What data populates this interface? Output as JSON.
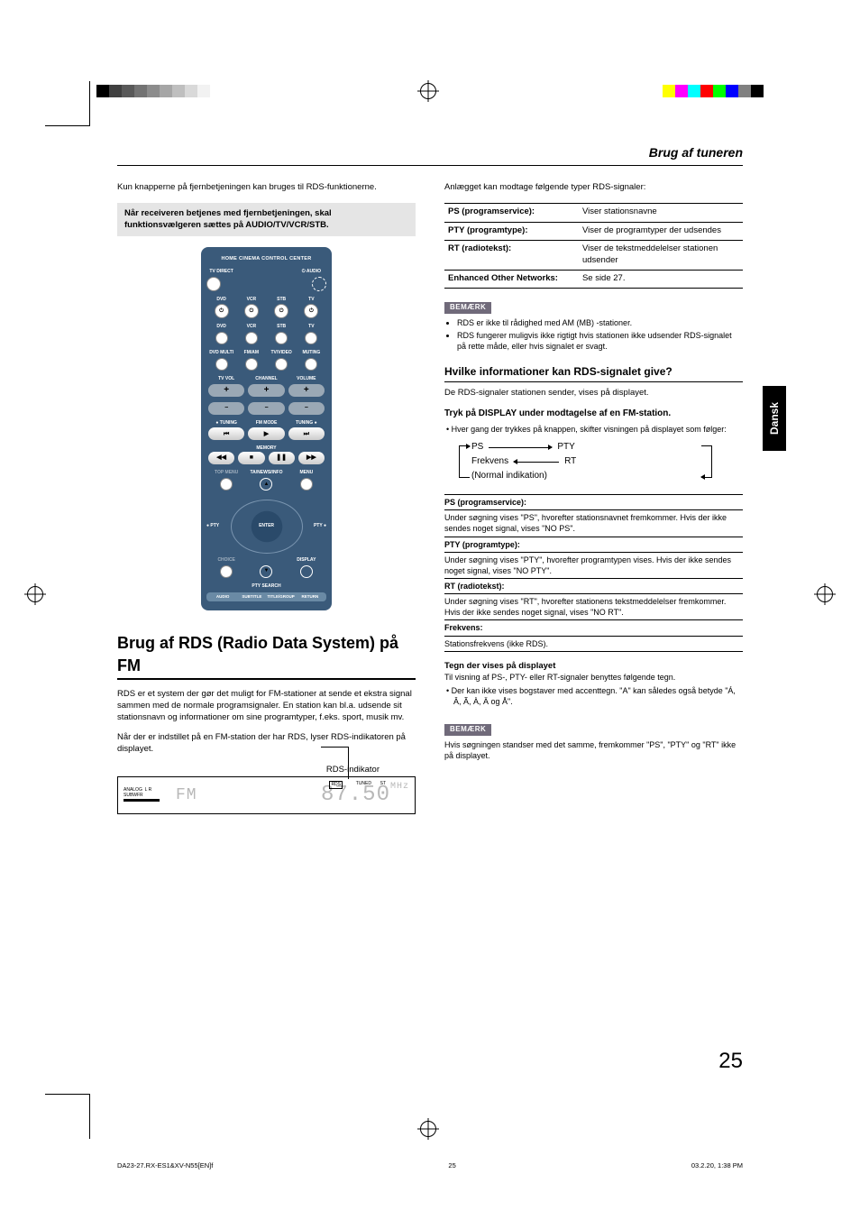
{
  "colorbars": {
    "left": [
      "#000000",
      "#404040",
      "#595959",
      "#737373",
      "#8c8c8c",
      "#a6a6a6",
      "#bfbfbf",
      "#d9d9d9",
      "#f2f2f2",
      "#ffffff"
    ],
    "right": [
      "#ffff00",
      "#ff00ff",
      "#00ffff",
      "#ff0000",
      "#00ff00",
      "#0000ff",
      "#808080",
      "#000000"
    ]
  },
  "header": "Brug af tuneren",
  "sidetab": "Dansk",
  "pagenum": "25",
  "footer": {
    "file": "DA23-27.RX-ES1&XV-N55[EN]f",
    "pg": "25",
    "stamp": "03.2.20, 1:38 PM"
  },
  "left": {
    "intro": "Kun knapperne på fjernbetjeningen kan bruges til RDS-funktionerne.",
    "graybox": "Når receiveren betjenes med fjernbetjeningen, skal funktionsvælgeren sættes på AUDIO/TV/VCR/STB.",
    "remote": {
      "title": "HOME CINEMA CONTROL CENTER",
      "r1": [
        "TV DIRECT",
        "",
        "",
        "",
        "⏻ AUDIO"
      ],
      "r2": [
        "DVD",
        "VCR",
        "STB",
        "TV"
      ],
      "r3": [
        "DVD",
        "VCR",
        "STB",
        "TV"
      ],
      "r4": [
        "DVD MULTI",
        "FM/AM",
        "TV/VIDEO",
        "MUTING"
      ],
      "r5": [
        "TV VOL",
        "CHANNEL",
        "VOLUME"
      ],
      "side": [
        "DVD",
        "AUDIO/TV/VCR/STB"
      ],
      "r6": [
        "TUNING",
        "FM MODE",
        "TUNING"
      ],
      "mem": "MEMORY",
      "r7": "TA/NEWS/INFO",
      "menu": "MENU",
      "pty": "PTY",
      "ptysearch": "PTY SEARCH",
      "display": "DISPLAY",
      "bottom": [
        "AUDIO",
        "SUBTITLE",
        "TITLE/GROUP",
        "RETURN"
      ]
    },
    "h2": "Brug af RDS (Radio Data System) på FM",
    "p1": "RDS er et system der gør det muligt for FM-stationer at sende et ekstra signal sammen med de normale programsignaler. En station kan bl.a. udsende sit stationsnavn og informationer om sine programtyper, f.eks. sport, musik mv.",
    "p2": "Når der er indstillet på en FM-station der har RDS, lyser RDS-indikatoren på displayet.",
    "rds_ind": "RDS-indikator",
    "panel": {
      "analog": "ANALOG",
      "lr": "L    R",
      "sub": "SUBWFR",
      "fm": "FM",
      "rds": "RDS",
      "tuned": "TUNED",
      "st": "ST",
      "freq": "87.50",
      "mhz": "MHz"
    }
  },
  "right": {
    "intro": "Anlægget kan modtage følgende typer RDS-signaler:",
    "table": [
      {
        "l": "PS (programservice):",
        "v": "Viser stationsnavne"
      },
      {
        "l": "PTY (programtype):",
        "v": "Viser de programtyper der udsendes"
      },
      {
        "l": "RT (radiotekst):",
        "v": "Viser de tekstmeddelelser stationen udsender"
      },
      {
        "l": "Enhanced Other Networks:",
        "v": "Se side 27."
      }
    ],
    "note1_label": "BEMÆRK",
    "note1": [
      "RDS er ikke til rådighed med AM (MB) -stationer.",
      "RDS fungerer muligvis ikke rigtigt hvis stationen ikke udsender RDS-signalet på rette måde, eller hvis signalet er svagt."
    ],
    "h3": "Hvilke informationer kan RDS-signalet give?",
    "sub1": "De RDS-signaler stationen sender, vises på displayet.",
    "step": "Tryk på DISPLAY under modtagelse af en FM-station.",
    "bullet": "• Hver gang der trykkes på knappen, skifter visningen på displayet som følger:",
    "flow": {
      "ps": "PS",
      "pty": "PTY",
      "freq": "Frekvens",
      "rt": "RT",
      "normal": "(Normal indikation)"
    },
    "defs": [
      {
        "h": "PS (programservice):",
        "b": "Under søgning vises \"PS\", hvorefter stationsnavnet fremkommer. Hvis der ikke sendes noget signal, vises \"NO PS\"."
      },
      {
        "h": "PTY (programtype):",
        "b": "Under søgning vises \"PTY\", hvorefter programtypen vises. Hvis der ikke sendes noget signal, vises \"NO PTY\"."
      },
      {
        "h": "RT (radiotekst):",
        "b": "Under søgning vises \"RT\", hvorefter stationens tekstmeddelelser fremkommer. Hvis der ikke sendes noget signal, vises \"NO RT\"."
      },
      {
        "h": "Frekvens:",
        "b": "Stationsfrekvens (ikke RDS)."
      }
    ],
    "tegn_h": "Tegn der vises på displayet",
    "tegn_p": "Til visning af PS-, PTY- eller RT-signaler benyttes følgende tegn.",
    "tegn_b": "• Der kan ikke vises bogstaver med accenttegn. \"A\" kan således også betyde \"Á, Â, Ã, À, Ä og Å\".",
    "note2_label": "BEMÆRK",
    "note2": "Hvis søgningen standser med det samme, fremkommer \"PS\", \"PTY\" og \"RT\" ikke på displayet."
  }
}
